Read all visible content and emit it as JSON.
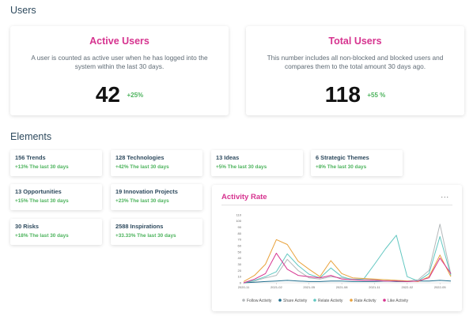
{
  "users_section": {
    "title": "Users"
  },
  "active_users": {
    "title": "Active Users",
    "description": "A user is counted as active user when he has logged into the system within the last 30 days.",
    "value": "42",
    "change": "+25%"
  },
  "total_users": {
    "title": "Total Users",
    "description": "This number includes all non-blocked and blocked users and compares them to the total amount 30 days ago.",
    "value": "118",
    "change": "+55 %"
  },
  "elements_section": {
    "title": "Elements"
  },
  "elements": [
    {
      "title": "156 Trends",
      "sub": "+13% The last 30 days"
    },
    {
      "title": "128 Technologies",
      "sub": "+42% The last 30 days"
    },
    {
      "title": "13 Ideas",
      "sub": "+5% The last 30 days"
    },
    {
      "title": "6 Strategic Themes",
      "sub": "+8% The last 30 days"
    },
    {
      "title": "13 Opportunities",
      "sub": "+15% The last 30 days"
    },
    {
      "title": "19 Innovation Projects",
      "sub": "+23% The last 30 days"
    },
    {
      "title": "30 Risks",
      "sub": "+18% The last 30 days"
    },
    {
      "title": "2588 Inspirations",
      "sub": "+33.33% The last 30 days"
    }
  ],
  "chart": {
    "title": "Activity Rate",
    "menu_label": "..."
  },
  "chart_data": {
    "type": "line",
    "title": "Activity Rate",
    "xlabel": "",
    "ylabel": "",
    "ylim": [
      0,
      110
    ],
    "y_ticks": [
      0,
      10,
      20,
      30,
      40,
      50,
      60,
      70,
      80,
      90,
      100,
      110
    ],
    "x_tick_labels": [
      "2020-11",
      "2021-02",
      "2021-05",
      "2021-08",
      "2021-11",
      "2022-02",
      "2022-05"
    ],
    "x_tick_index": [
      0,
      3,
      6,
      9,
      12,
      15,
      18
    ],
    "grid": false,
    "legend_position": "bottom",
    "series": [
      {
        "name": "Follow Activity",
        "color": "#b4b8ba",
        "values": [
          0,
          3,
          8,
          12,
          38,
          20,
          8,
          6,
          10,
          8,
          6,
          6,
          5,
          5,
          4,
          3,
          5,
          20,
          95,
          14
        ]
      },
      {
        "name": "Share Activity",
        "color": "#1f6d8c",
        "values": [
          0,
          1,
          2,
          3,
          4,
          3,
          2,
          2,
          3,
          3,
          2,
          2,
          2,
          3,
          2,
          2,
          3,
          3,
          4,
          3
        ]
      },
      {
        "name": "Relate Activity",
        "color": "#62c7c1",
        "values": [
          0,
          4,
          10,
          18,
          47,
          28,
          14,
          8,
          24,
          10,
          5,
          6,
          30,
          55,
          77,
          10,
          3,
          15,
          75,
          12
        ]
      },
      {
        "name": "Rate Activity",
        "color": "#e9a23b",
        "values": [
          2,
          12,
          30,
          70,
          62,
          35,
          22,
          10,
          36,
          15,
          8,
          7,
          6,
          5,
          4,
          3,
          2,
          10,
          45,
          10
        ]
      },
      {
        "name": "Like Activity",
        "color": "#d6338f",
        "values": [
          0,
          6,
          15,
          48,
          22,
          12,
          10,
          8,
          12,
          6,
          5,
          4,
          4,
          3,
          3,
          2,
          3,
          8,
          40,
          15
        ]
      }
    ]
  }
}
